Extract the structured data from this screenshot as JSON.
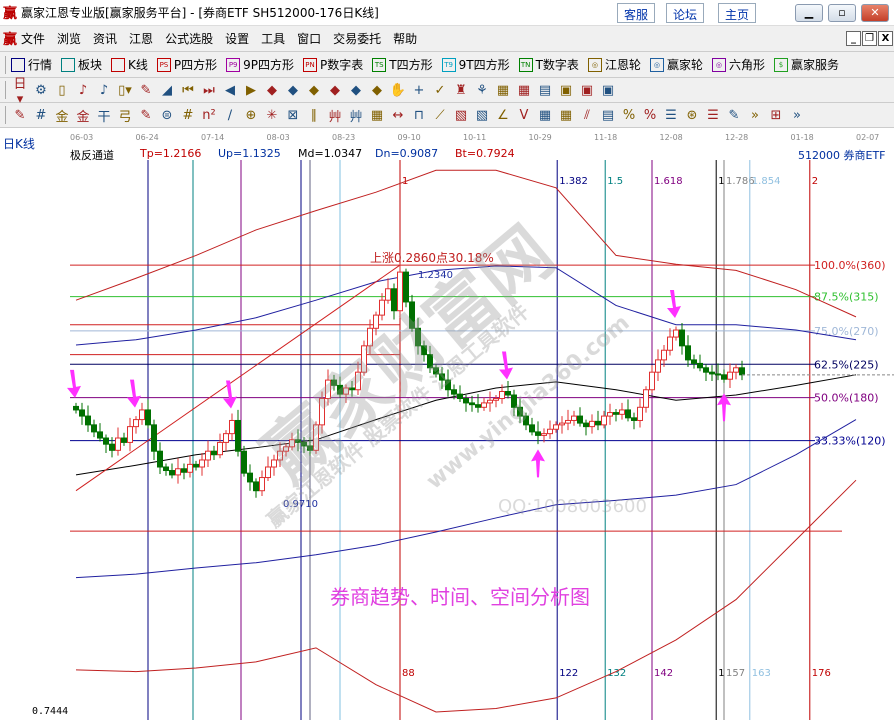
{
  "window": {
    "title": "赢家江恩专业版[赢家服务平台] - [券商ETF  SH512000-176日K线]",
    "links": [
      "客服",
      "论坛",
      "主页"
    ],
    "logo": "赢"
  },
  "menu": [
    "文件",
    "浏览",
    "资讯",
    "江恩",
    "公式选股",
    "设置",
    "工具",
    "窗口",
    "交易委托",
    "帮助"
  ],
  "toolbar1": [
    {
      "label": "行情",
      "icon": "grid-icon",
      "color": "#000080",
      "tag": ""
    },
    {
      "label": "板块",
      "icon": "blocks-icon",
      "color": "#008080",
      "tag": ""
    },
    {
      "label": "K线",
      "icon": "kline-icon",
      "color": "#c00000",
      "tag": ""
    },
    {
      "label": "P四方形",
      "icon": "ps-icon",
      "color": "#c00000",
      "tag": "PS"
    },
    {
      "label": "9P四方形",
      "icon": "p9-icon",
      "color": "#a000a0",
      "tag": "P9"
    },
    {
      "label": "P数字表",
      "icon": "pn-icon",
      "color": "#c00000",
      "tag": "PN"
    },
    {
      "label": "T四方形",
      "icon": "ts-icon",
      "color": "#008000",
      "tag": "TS"
    },
    {
      "label": "9T四方形",
      "icon": "t9-icon",
      "color": "#00a0c0",
      "tag": "T9"
    },
    {
      "label": "T数字表",
      "icon": "tn-icon",
      "color": "#008000",
      "tag": "TN"
    },
    {
      "label": "江恩轮",
      "icon": "gann-wheel-icon",
      "color": "#806000",
      "tag": "◎"
    },
    {
      "label": "赢家轮",
      "icon": "winner-wheel-icon",
      "color": "#2060a0",
      "tag": "◎"
    },
    {
      "label": "六角形",
      "icon": "hexagon-icon",
      "color": "#8000a0",
      "tag": "◎"
    },
    {
      "label": "赢家服务",
      "icon": "dollar-icon",
      "color": "#20a020",
      "tag": "$"
    }
  ],
  "toolbar2_icons": [
    "日▾",
    "⚙",
    "▯",
    "♪",
    "♪",
    "▯▾",
    "✎",
    "◢",
    "⏮",
    "⏭",
    "◀",
    "▶",
    "◆",
    "◆",
    "◆",
    "◆",
    "◆",
    "◆",
    "✋",
    "+",
    "✓",
    "♜",
    "⚘",
    "▦",
    "▦",
    "▤",
    "▣",
    "▣",
    "▣"
  ],
  "toolbar3_icons": [
    "✎",
    "#",
    "⾦",
    "⾦",
    "⼲",
    "⼸",
    "✎",
    "⊜",
    "#",
    "n²",
    "∕",
    "⊕",
    "✳",
    "⊠",
    "∥",
    "⾋",
    "⾋",
    "▦",
    "↔",
    "⊓",
    "⟋",
    "▧",
    "▧",
    "∠",
    "V",
    "▦",
    "▦",
    "⫽",
    "▤",
    "%",
    "%",
    "☰",
    "⊛",
    "☰",
    "✎",
    "»",
    "⊞",
    "»"
  ],
  "period_label": "日K线",
  "dates": [
    "06-03",
    "06-24",
    "07-14",
    "08-03",
    "08-23",
    "09-10",
    "10-11",
    "10-29",
    "11-18",
    "12-08",
    "12-28",
    "01-18",
    "02-07"
  ],
  "indicator": {
    "name": "极反通道",
    "tp": "Tp=1.2166",
    "up": "Up=1.1325",
    "md": "Md=1.0347",
    "dn": "Dn=0.9087",
    "bt": "Bt=0.7924"
  },
  "symbol": "512000  券商ETF",
  "min_price_label": "0.7444",
  "annotations": {
    "rise": "上涨0.2860点30.18%",
    "high": "1.2340",
    "low": "0.9710",
    "caption": "券商趋势、时间、空间分析图"
  },
  "watermarks": {
    "main": "赢家财富网",
    "sub": "赢家江恩软件  股票软件  江恩工具软件",
    "url": "www.yingjia360.com",
    "qq": "QQ:1008003600"
  },
  "colors": {
    "up": "#e03030",
    "down": "#007000",
    "caption": "#e040e0",
    "arrow": "#ff30ff"
  },
  "chart_data": {
    "type": "candlestick",
    "closes": [
      1.077,
      1.07,
      1.06,
      1.052,
      1.045,
      1.038,
      1.031,
      1.045,
      1.04,
      1.058,
      1.066,
      1.077,
      1.06,
      1.03,
      1.012,
      1.008,
      1.003,
      1.01,
      1.006,
      1.015,
      1.012,
      1.02,
      1.03,
      1.026,
      1.04,
      1.05,
      1.065,
      1.03,
      1.005,
      0.995,
      0.985,
      1.0,
      1.012,
      1.02,
      1.03,
      1.035,
      1.043,
      1.04,
      1.036,
      1.031,
      1.06,
      1.09,
      1.111,
      1.105,
      1.095,
      1.102,
      1.1,
      1.12,
      1.15,
      1.17,
      1.185,
      1.202,
      1.215,
      1.19,
      1.234,
      1.2,
      1.17,
      1.15,
      1.14,
      1.125,
      1.118,
      1.111,
      1.1,
      1.095,
      1.09,
      1.085,
      1.083,
      1.08,
      1.085,
      1.088,
      1.09,
      1.098,
      1.094,
      1.08,
      1.07,
      1.06,
      1.052,
      1.048,
      1.05,
      1.055,
      1.06,
      1.062,
      1.065,
      1.07,
      1.062,
      1.058,
      1.064,
      1.06,
      1.07,
      1.074,
      1.072,
      1.077,
      1.068,
      1.065,
      1.08,
      1.1,
      1.12,
      1.134,
      1.145,
      1.16,
      1.168,
      1.15,
      1.134,
      1.13,
      1.125,
      1.12,
      1.118,
      1.117,
      1.112,
      1.12,
      1.125,
      1.117
    ],
    "channel_lines": [
      {
        "color": "#c02020",
        "values": [
          1.202,
          1.227,
          1.253,
          1.282,
          1.304,
          1.325,
          1.35,
          1.35,
          1.33,
          1.253,
          1.243,
          1.236,
          1.214,
          1.183
        ]
      },
      {
        "color": "#2020a0",
        "values": [
          1.151,
          1.157,
          1.168,
          1.182,
          1.202,
          1.223,
          1.236,
          1.241,
          1.239,
          1.196,
          1.174,
          1.174,
          1.168,
          1.157
        ]
      },
      {
        "color": "#000000",
        "values": [
          1.003,
          1.014,
          1.026,
          1.034,
          1.043,
          1.066,
          1.088,
          1.102,
          1.109,
          1.1,
          1.088,
          1.094,
          1.105,
          1.117
        ]
      },
      {
        "color": "#2020a0",
        "values": [
          0.886,
          0.89,
          0.897,
          0.903,
          0.912,
          0.923,
          0.938,
          0.954,
          0.969,
          0.974,
          0.98,
          0.992,
          1.026,
          1.066
        ]
      },
      {
        "color": "#c02020",
        "values": [
          0.781,
          0.779,
          0.783,
          0.79,
          0.806,
          0.764,
          0.733,
          0.737,
          0.749,
          0.779,
          0.815,
          0.861,
          0.929,
          0.997
        ]
      }
    ],
    "fib_levels": [
      {
        "label": "100.0%(360)",
        "price": 1.242,
        "color": "#d02020"
      },
      {
        "label": "87.5%(315)",
        "price": 1.206,
        "color": "#30c030"
      },
      {
        "label": "75.0%(270)",
        "price": 1.167,
        "color": "#a0b8d8"
      },
      {
        "label": "62.5%(225)",
        "price": 1.129,
        "color": "#000060"
      },
      {
        "label": "50.0%(180)",
        "price": 1.091,
        "color": "#800080"
      },
      {
        "label": "33.33%(120)",
        "price": 1.042,
        "color": "#000090"
      }
    ],
    "extra_hlines": [
      {
        "price": 1.174,
        "color": "#d02020"
      },
      {
        "price": 1.14,
        "color": "#d02020"
      },
      {
        "price": 0.939,
        "color": "#d02020"
      }
    ],
    "time_lines": [
      {
        "bar": 12,
        "color": "#000080",
        "top": "",
        "bottom": ""
      },
      {
        "bar": 19.5,
        "color": "#008080",
        "top": "",
        "bottom": ""
      },
      {
        "bar": 27.5,
        "color": "#800080",
        "top": "",
        "bottom": ""
      },
      {
        "bar": 37.5,
        "color": "#000080",
        "top": "",
        "bottom": ""
      },
      {
        "bar": 39,
        "color": "#606080",
        "top": "",
        "bottom": ""
      },
      {
        "bar": 44,
        "color": "#80c0e0",
        "top": "",
        "bottom": ""
      },
      {
        "bar": 54,
        "color": "#c00000",
        "top": "1",
        "bottom": "88"
      },
      {
        "bar": 80.2,
        "color": "#000080",
        "top": "1.382",
        "bottom": "122"
      },
      {
        "bar": 88.2,
        "color": "#008080",
        "top": "1.5",
        "bottom": "132"
      },
      {
        "bar": 96,
        "color": "#800080",
        "top": "1.618",
        "bottom": "142"
      },
      {
        "bar": 106.7,
        "color": "#000000",
        "top": "1",
        "bottom": "1"
      },
      {
        "bar": 108,
        "color": "#808080",
        "top": "1.786",
        "bottom": "157"
      },
      {
        "bar": 112.3,
        "color": "#90c0e0",
        "top": "1.854",
        "bottom": "163"
      },
      {
        "bar": 122.3,
        "color": "#c00000",
        "top": "2",
        "bottom": "176"
      }
    ],
    "down_arrows": [
      0,
      10,
      26,
      72,
      100
    ],
    "up_arrows": [
      77,
      108
    ]
  }
}
